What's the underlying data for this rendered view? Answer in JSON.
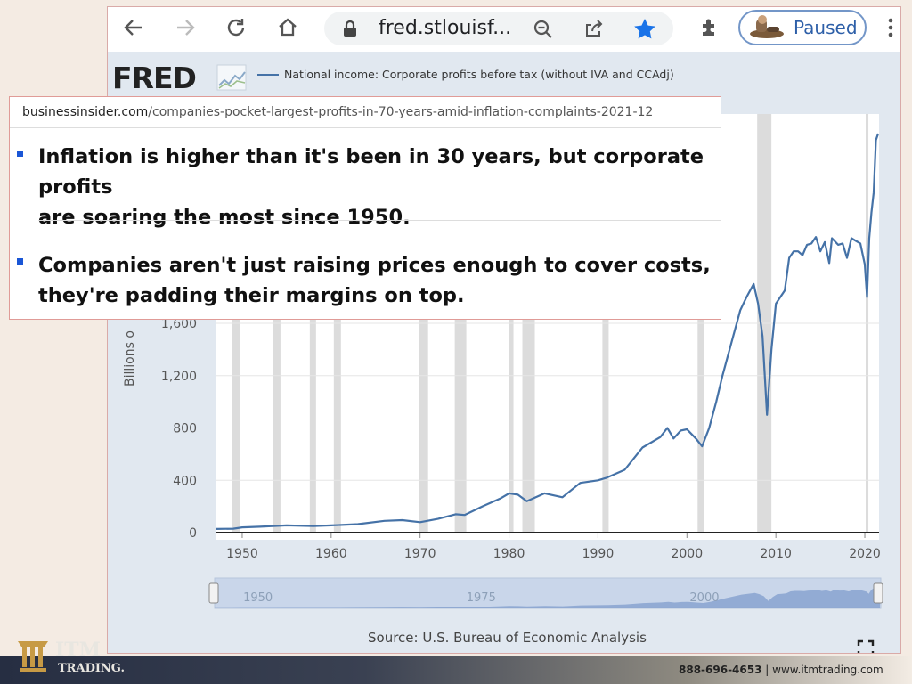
{
  "browser": {
    "url_display": "fred.stlouisf...",
    "paused_label": "Paused"
  },
  "fred": {
    "logo_text": "FRED",
    "series_title": "National income: Corporate profits before tax (without IVA and CCAdj)",
    "source": "Source: U.S. Bureau of Economic Analysis"
  },
  "card": {
    "url_domain": "businessinsider.com",
    "url_path": "/companies-pocket-largest-profits-in-70-years-amid-inflation-complaints-2021-12",
    "bullets": [
      {
        "line1": "Inflation is higher than it's been in 30 years, but corporate profits",
        "line2": "are soaring the most since 1950."
      },
      {
        "line1": "Companies aren't just raising prices enough to cover costs,",
        "line2": "they're padding their margins on top."
      }
    ]
  },
  "footer": {
    "brand": "ITM",
    "brand_sub": "TRADING.",
    "phone": "888-696-4653",
    "separator": "|",
    "website": "www.itmtrading.com"
  },
  "chart_data": {
    "type": "line",
    "ylabel": "Billions of Dollars",
    "ylabel_visible": "Billions o",
    "yticks": [
      0,
      400,
      800,
      1200,
      1600
    ],
    "ytick_labels": [
      "0",
      "400",
      "800",
      "1,200",
      "1,600"
    ],
    "xticks": [
      1950,
      1960,
      1970,
      1980,
      1990,
      2000,
      2010,
      2020
    ],
    "xtick_labels": [
      "1950",
      "1960",
      "1970",
      "1980",
      "1990",
      "2000",
      "2010",
      "2020"
    ],
    "navigator_labels": [
      "1950",
      "1975",
      "2000"
    ],
    "line_color": "#4572a7",
    "recession_color": "#dcdcdc",
    "recessions": [
      [
        1948.9,
        1949.8
      ],
      [
        1953.5,
        1954.3
      ],
      [
        1957.6,
        1958.3
      ],
      [
        1960.3,
        1961.1
      ],
      [
        1969.9,
        1970.9
      ],
      [
        1973.9,
        1975.2
      ],
      [
        1980.0,
        1980.5
      ],
      [
        1981.5,
        1982.9
      ],
      [
        1990.5,
        1991.2
      ],
      [
        2001.2,
        2001.9
      ],
      [
        2007.9,
        2009.5
      ],
      [
        2020.1,
        2020.4
      ]
    ],
    "series": [
      {
        "name": "National income: Corporate profits before tax (without IVA and CCAdj)",
        "x": [
          1947,
          1949,
          1950,
          1952,
          1955,
          1958,
          1960,
          1963,
          1966,
          1968,
          1970,
          1972,
          1974,
          1975,
          1977,
          1979,
          1980,
          1981,
          1982,
          1984,
          1986,
          1988,
          1990,
          1991,
          1993,
          1995,
          1997,
          1997.8,
          1998.5,
          1999.3,
          2000,
          2001,
          2001.7,
          2002.5,
          2003.3,
          2004,
          2005,
          2006,
          2006.7,
          2007.5,
          2008,
          2008.5,
          2009,
          2009.5,
          2010,
          2010.5,
          2011,
          2011.5,
          2012,
          2012.5,
          2013,
          2013.5,
          2014,
          2014.5,
          2015,
          2015.5,
          2016,
          2016.3,
          2017,
          2017.5,
          2018,
          2018.5,
          2019,
          2019.5,
          2020,
          2020.25,
          2020.5,
          2020.75,
          2021,
          2021.25,
          2021.5
        ],
        "values": [
          28,
          30,
          40,
          45,
          55,
          50,
          55,
          65,
          90,
          95,
          80,
          105,
          140,
          135,
          200,
          260,
          300,
          290,
          240,
          300,
          270,
          380,
          400,
          420,
          480,
          650,
          730,
          800,
          720,
          780,
          790,
          720,
          660,
          800,
          1000,
          1200,
          1450,
          1700,
          1800,
          1900,
          1750,
          1500,
          900,
          1400,
          1750,
          1800,
          1850,
          2100,
          2150,
          2150,
          2120,
          2200,
          2210,
          2260,
          2150,
          2220,
          2060,
          2250,
          2200,
          2210,
          2100,
          2250,
          2230,
          2210,
          2050,
          1800,
          2250,
          2450,
          2600,
          3000,
          3050
        ]
      }
    ]
  }
}
